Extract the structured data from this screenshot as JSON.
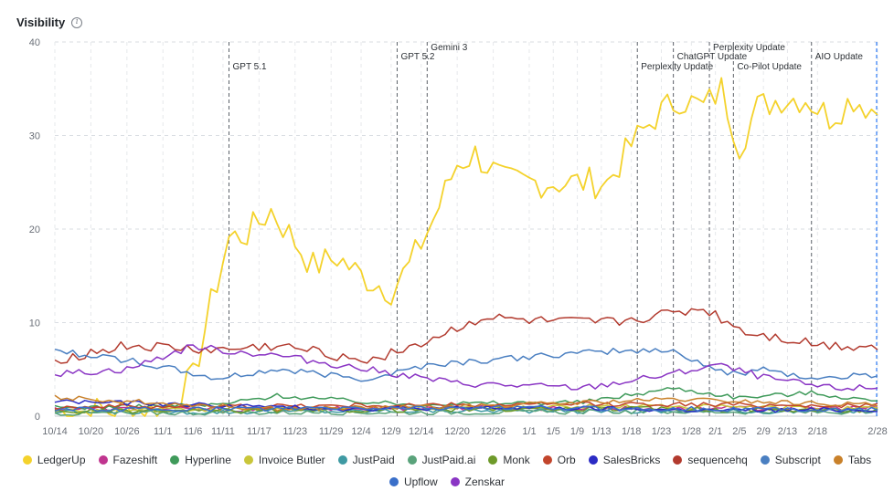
{
  "header": {
    "title": "Visibility",
    "info_icon": "info-circle-icon"
  },
  "chart_data": {
    "type": "line",
    "ylim": [
      0,
      40
    ],
    "yticks": [
      0,
      10,
      20,
      30,
      40
    ],
    "x_range": [
      "10/14",
      "2/28"
    ],
    "xtick_labels": [
      "10/14",
      "10/20",
      "10/26",
      "11/1",
      "11/6",
      "11/11",
      "11/17",
      "11/23",
      "11/29",
      "12/4",
      "12/9",
      "12/14",
      "12/20",
      "12/26",
      "1/1",
      "1/5",
      "1/9",
      "1/13",
      "1/18",
      "1/23",
      "1/28",
      "2/1",
      "2/5",
      "2/9",
      "2/13",
      "2/18",
      "2/28"
    ],
    "grid": true,
    "legend": "bottom",
    "annotations": [
      {
        "date": "11/12",
        "label": "GPT 5.1"
      },
      {
        "date": "12/10",
        "label": "GPT 5.2"
      },
      {
        "date": "12/15",
        "label": "Gemini 3"
      },
      {
        "date": "1/19",
        "label": "Perplexity Update"
      },
      {
        "date": "1/25",
        "label": "ChatGPT Update"
      },
      {
        "date": "1/31",
        "label": "Perplexity Update"
      },
      {
        "date": "2/4",
        "label": "Co-Pilot Update"
      },
      {
        "date": "2/17",
        "label": "AIO Update"
      }
    ],
    "series": [
      {
        "name": "LedgerUp",
        "color": "#f4d22c",
        "x": [
          "10/14",
          "11/1",
          "11/6",
          "11/9",
          "11/12",
          "11/15",
          "11/19",
          "11/22",
          "11/26",
          "11/30",
          "12/4",
          "12/9",
          "12/12",
          "12/16",
          "12/20",
          "12/23",
          "12/28",
          "1/2",
          "1/6",
          "1/10",
          "1/14",
          "1/18",
          "1/22",
          "1/26",
          "1/30",
          "2/2",
          "2/5",
          "2/8",
          "2/12",
          "2/16",
          "2/20",
          "2/24",
          "2/28"
        ],
        "values": [
          0.5,
          0.6,
          4,
          12,
          19,
          19.5,
          22,
          19.5,
          16,
          17,
          15,
          13.5,
          16,
          21,
          27,
          28,
          25,
          25,
          25,
          25,
          25,
          29,
          32,
          34,
          33,
          35,
          29,
          33,
          34,
          34,
          32,
          34,
          32.5
        ]
      },
      {
        "name": "Fazeshift",
        "color": "#c0358f",
        "x": [
          "10/14",
          "11/15",
          "12/20",
          "1/20",
          "2/28"
        ],
        "values": [
          0.8,
          0.7,
          0.9,
          0.8,
          0.9
        ]
      },
      {
        "name": "Hyperline",
        "color": "#3f9a5a",
        "x": [
          "10/14",
          "11/10",
          "11/20",
          "12/10",
          "1/10",
          "1/25",
          "2/5",
          "2/17",
          "2/28"
        ],
        "values": [
          0.9,
          1.2,
          2.2,
          1.3,
          1.5,
          3,
          2,
          2.5,
          1.6
        ]
      },
      {
        "name": "Invoice Butler",
        "color": "#c9c63a",
        "x": [
          "10/14",
          "11/20",
          "12/20",
          "1/20",
          "2/28"
        ],
        "values": [
          0.6,
          0.7,
          0.9,
          1.1,
          0.8
        ]
      },
      {
        "name": "JustPaid",
        "color": "#3f9aa3",
        "x": [
          "10/14",
          "11/20",
          "12/20",
          "1/20",
          "2/28"
        ],
        "values": [
          0.4,
          0.5,
          0.6,
          0.5,
          0.5
        ]
      },
      {
        "name": "JustPaid.ai",
        "color": "#5aa37b",
        "x": [
          "10/14",
          "11/20",
          "12/20",
          "1/20",
          "2/28"
        ],
        "values": [
          0.3,
          0.4,
          0.4,
          0.5,
          0.4
        ]
      },
      {
        "name": "Monk",
        "color": "#6e9a2a",
        "x": [
          "10/14",
          "11/20",
          "12/20",
          "1/20",
          "2/28"
        ],
        "values": [
          0.5,
          0.6,
          0.7,
          0.8,
          0.6
        ]
      },
      {
        "name": "Orb",
        "color": "#c2452c",
        "x": [
          "10/14",
          "11/20",
          "12/20",
          "1/20",
          "2/28"
        ],
        "values": [
          1,
          1.1,
          1.2,
          1.3,
          1.1
        ]
      },
      {
        "name": "SalesBricks",
        "color": "#2b2bc4",
        "x": [
          "10/14",
          "11/1",
          "12/1",
          "1/1",
          "2/1",
          "2/28"
        ],
        "values": [
          1.6,
          1.3,
          0.8,
          0.9,
          0.6,
          0.7
        ]
      },
      {
        "name": "sequencehq",
        "color": "#b23a2e",
        "x": [
          "10/14",
          "10/26",
          "11/10",
          "11/20",
          "12/5",
          "12/15",
          "12/24",
          "1/5",
          "1/15",
          "1/25",
          "1/30",
          "2/6",
          "2/15",
          "2/20",
          "2/28"
        ],
        "values": [
          6,
          7.5,
          7,
          7.5,
          6,
          8,
          10.5,
          10,
          10,
          11,
          11.5,
          9,
          8,
          7.5,
          7.5
        ]
      },
      {
        "name": "Subscript",
        "color": "#4a7fc1",
        "x": [
          "10/14",
          "10/26",
          "11/10",
          "11/20",
          "12/5",
          "12/15",
          "12/25",
          "1/5",
          "1/15",
          "1/25",
          "2/3",
          "2/10",
          "2/17",
          "2/28"
        ],
        "values": [
          7,
          6,
          4,
          5,
          4,
          5.5,
          6,
          6.5,
          7,
          7,
          4.5,
          5,
          4,
          4.5
        ]
      },
      {
        "name": "Tabs",
        "color": "#c9812a",
        "x": [
          "10/14",
          "11/20",
          "12/20",
          "1/25",
          "2/10",
          "2/28"
        ],
        "values": [
          2,
          0.8,
          1,
          1.8,
          1.5,
          1.2
        ]
      },
      {
        "name": "Upflow",
        "color": "#3a6fc9",
        "x": [
          "10/14",
          "11/20",
          "12/20",
          "1/20",
          "2/28"
        ],
        "values": [
          0.7,
          0.8,
          0.9,
          0.8,
          0.7
        ]
      },
      {
        "name": "Zenskar",
        "color": "#8a35c4",
        "x": [
          "10/14",
          "10/26",
          "11/6",
          "11/11",
          "11/20",
          "12/5",
          "12/20",
          "1/10",
          "1/25",
          "2/1",
          "2/10",
          "2/20",
          "2/28"
        ],
        "values": [
          4.5,
          5,
          7.5,
          7,
          6.5,
          5,
          3.5,
          3,
          4.5,
          5.5,
          4,
          3,
          3
        ]
      }
    ]
  }
}
